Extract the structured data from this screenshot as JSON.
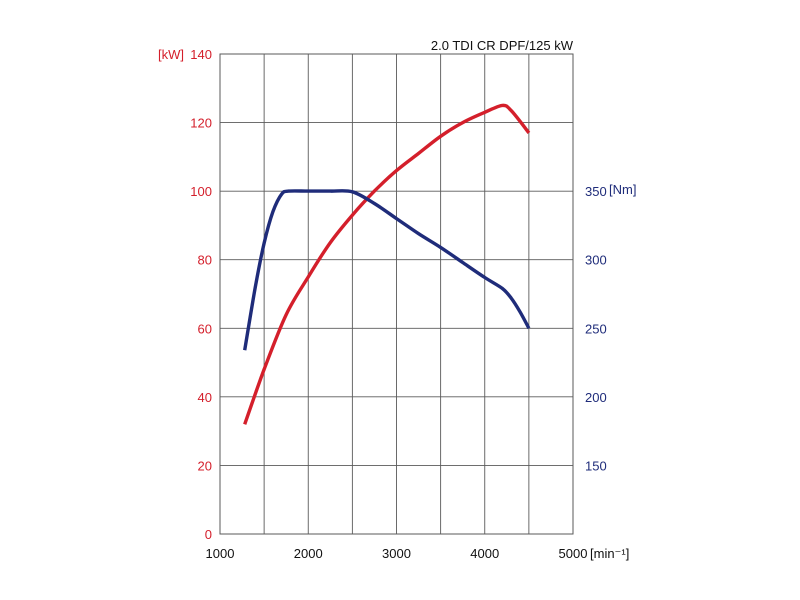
{
  "chart_data": {
    "type": "line",
    "title": "2.0 TDI CR DPF/125 kW",
    "x_axis": {
      "unit_label": "[min⁻¹]",
      "range": [
        1000,
        5000
      ],
      "ticks": [
        1000,
        2000,
        3000,
        4000,
        5000
      ],
      "gridlines": [
        1000,
        1500,
        2000,
        2500,
        3000,
        3500,
        4000,
        4500,
        5000
      ]
    },
    "y_axis_left": {
      "unit_label": "[kW]",
      "range": [
        0,
        140
      ],
      "ticks": [
        0,
        20,
        40,
        60,
        80,
        100,
        120,
        140
      ]
    },
    "y_axis_right": {
      "unit_label": "[Nm]",
      "range": [
        100,
        450
      ],
      "ticks": [
        150,
        200,
        250,
        300,
        350
      ]
    },
    "grid": true,
    "colors": {
      "power": "#d41f2b",
      "torque": "#1f2c7a"
    },
    "series": [
      {
        "axis": "left",
        "color": "#d41f2b",
        "x": [
          1280,
          1500,
          1750,
          2000,
          2250,
          2500,
          2750,
          3000,
          3250,
          3500,
          3750,
          4000,
          4200,
          4300,
          4500
        ],
        "values": [
          32,
          48,
          64,
          75,
          85,
          93,
          100,
          106,
          111,
          116,
          120,
          123,
          125,
          123.5,
          117
        ]
      },
      {
        "axis": "right",
        "color": "#1f2c7a",
        "x": [
          1280,
          1400,
          1500,
          1600,
          1700,
          1780,
          2000,
          2250,
          2500,
          2750,
          3000,
          3250,
          3500,
          3750,
          4000,
          4200,
          4300,
          4400,
          4500
        ],
        "values": [
          234,
          280,
          312,
          335,
          348,
          350,
          350,
          350,
          349.5,
          341,
          330,
          319,
          309,
          298,
          287,
          279,
          272,
          262,
          250
        ]
      }
    ]
  }
}
